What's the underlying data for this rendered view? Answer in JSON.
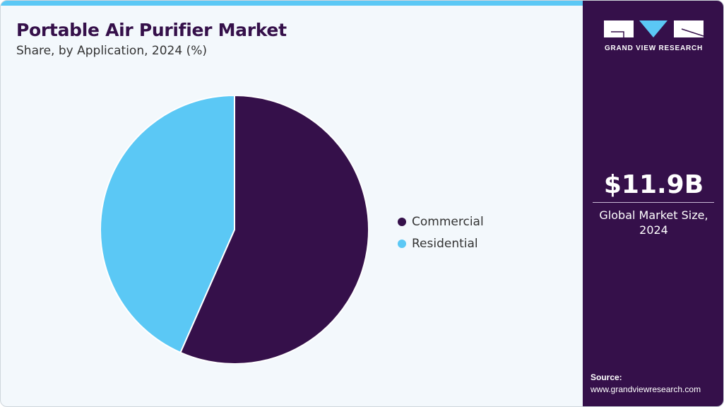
{
  "header": {
    "title": "Portable Air Purifier Market",
    "subtitle": "Share, by Application, 2024 (%)"
  },
  "brand": {
    "name": "GRAND VIEW RESEARCH",
    "colors": {
      "panel": "#35104a",
      "accent": "#5bc8f5"
    }
  },
  "metric": {
    "value": "$11.9B",
    "label_line1": "Global Market Size,",
    "label_line2": "2024"
  },
  "source": {
    "label": "Source:",
    "url": "www.grandviewresearch.com"
  },
  "legend": [
    {
      "label": "Commercial",
      "color": "#35104a"
    },
    {
      "label": "Residential",
      "color": "#5bc8f5"
    }
  ],
  "chart_data": {
    "type": "pie",
    "title": "Portable Air Purifier Market",
    "subtitle": "Share, by Application, 2024 (%)",
    "categories": [
      "Commercial",
      "Residential"
    ],
    "values": [
      56.6,
      43.4
    ],
    "colors": [
      "#35104a",
      "#5bc8f5"
    ],
    "start_angle_deg": 0,
    "direction": "clockwise",
    "legend_position": "right"
  }
}
